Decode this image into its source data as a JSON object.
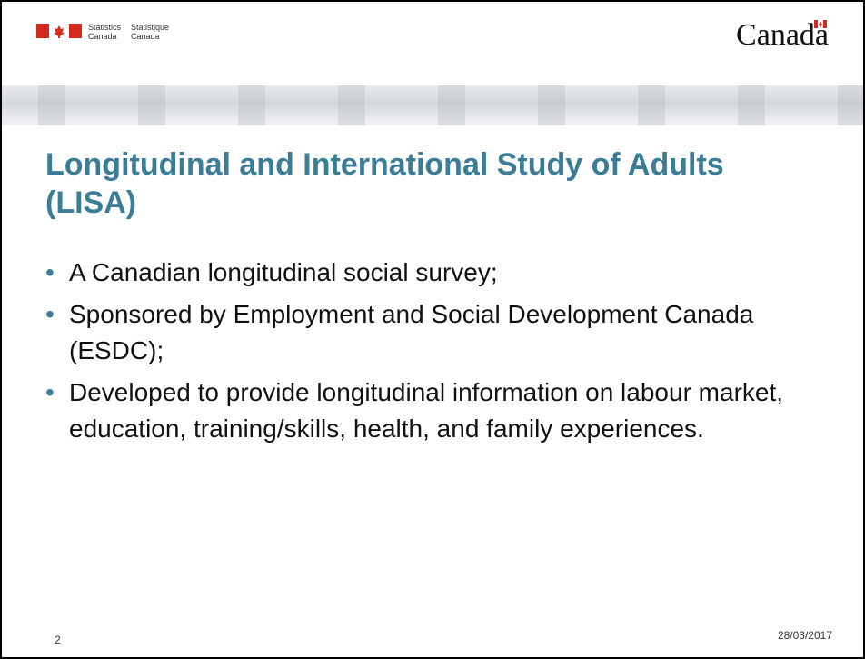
{
  "header": {
    "department_en": [
      "Statistics",
      "Canada"
    ],
    "department_fr": [
      "Statistique",
      "Canada"
    ],
    "wordmark": "Canada"
  },
  "title": "Longitudinal and International Study of Adults (LISA)",
  "bullets": [
    "A Canadian longitudinal social survey;",
    "Sponsored by Employment and Social Development Canada (ESDC);",
    "Developed to provide longitudinal information on labour market, education, training/skills, health, and family experiences."
  ],
  "footer": {
    "page_number": "2",
    "date": "28/03/2017"
  }
}
